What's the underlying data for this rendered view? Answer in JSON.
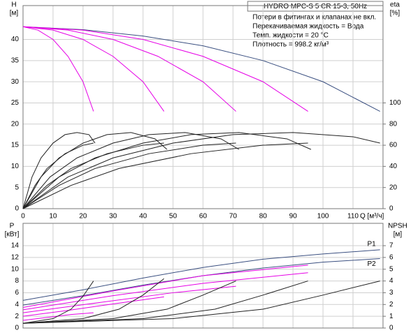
{
  "chart_data": [
    {
      "type": "line",
      "title": "HYDRO MPC-S 5 CR 15-3, 50Hz",
      "annotations": [
        "Потери в фитингах и клапанах не вкл.",
        "Перекачиваемая жидкость = Вода",
        "Темп. жидкости = 20 °C",
        "Плотность = 998.2 кг/м³"
      ],
      "xlabel": "Q [м³/ч]",
      "ylabel": "H",
      "yunit": "[м]",
      "y2label": "eta",
      "y2unit": "[%]",
      "xlim": [
        0,
        120
      ],
      "xticks": [
        0,
        10,
        20,
        30,
        40,
        50,
        60,
        70,
        80,
        90,
        100,
        110
      ],
      "ylim": [
        0,
        48
      ],
      "yticks": [
        0,
        5,
        10,
        15,
        20,
        25,
        30,
        35,
        40
      ],
      "y2lim": [
        0,
        192
      ],
      "y2ticks": [
        0,
        20,
        40,
        60,
        80,
        100
      ],
      "grid": true,
      "series": [
        {
          "color": "#3a4f80",
          "x": [
            0,
            20,
            40,
            60,
            80,
            100,
            119
          ],
          "values": [
            43,
            42.3,
            40.8,
            38.5,
            35,
            30,
            23
          ]
        },
        {
          "color": "#e600e6",
          "x": [
            0,
            5,
            10,
            15,
            20,
            23.5
          ],
          "values": [
            43,
            42.2,
            40,
            36,
            30,
            23
          ]
        },
        {
          "color": "#e600e6",
          "x": [
            0,
            10,
            20,
            30,
            40,
            47
          ],
          "values": [
            43,
            42.2,
            40,
            36,
            30,
            23
          ]
        },
        {
          "color": "#e600e6",
          "x": [
            0,
            15,
            30,
            45,
            60,
            71
          ],
          "values": [
            43,
            42.2,
            40,
            36,
            30,
            23
          ]
        },
        {
          "color": "#e600e6",
          "x": [
            0,
            20,
            40,
            60,
            80,
            95
          ],
          "values": [
            43,
            42.2,
            40,
            36,
            30,
            23
          ]
        },
        {
          "color": "#222222",
          "axis": "y2",
          "x": [
            0,
            3,
            6,
            10,
            14,
            18,
            22,
            24
          ],
          "values": [
            0,
            30,
            48,
            62,
            70,
            72,
            70,
            62
          ]
        },
        {
          "color": "#222222",
          "axis": "y2",
          "x": [
            0,
            6,
            12,
            20,
            28,
            36,
            44,
            48
          ],
          "values": [
            0,
            30,
            48,
            62,
            70,
            72,
            66,
            56
          ]
        },
        {
          "color": "#222222",
          "axis": "y2",
          "x": [
            0,
            9,
            18,
            30,
            42,
            54,
            66,
            72
          ],
          "values": [
            0,
            30,
            48,
            62,
            70,
            72,
            66,
            56
          ]
        },
        {
          "color": "#222222",
          "axis": "y2",
          "x": [
            0,
            12,
            24,
            40,
            56,
            72,
            88,
            96
          ],
          "values": [
            0,
            30,
            48,
            62,
            70,
            72,
            66,
            56
          ]
        },
        {
          "color": "#222222",
          "axis": "y2",
          "x": [
            0,
            15,
            30,
            50,
            70,
            90,
            110,
            119
          ],
          "values": [
            0,
            30,
            48,
            62,
            70,
            72,
            68,
            62
          ]
        },
        {
          "color": "#222222",
          "axis": "y2",
          "x": [
            0,
            4,
            8,
            14,
            20,
            23.5
          ],
          "values": [
            0,
            22,
            38,
            52,
            60,
            62
          ]
        },
        {
          "color": "#222222",
          "axis": "y2",
          "x": [
            0,
            8,
            16,
            28,
            40,
            47
          ],
          "values": [
            0,
            22,
            38,
            52,
            60,
            62
          ]
        },
        {
          "color": "#222222",
          "axis": "y2",
          "x": [
            0,
            12,
            24,
            42,
            60,
            71
          ],
          "values": [
            0,
            22,
            38,
            52,
            60,
            62
          ]
        },
        {
          "color": "#222222",
          "axis": "y2",
          "x": [
            0,
            16,
            32,
            56,
            80,
            95
          ],
          "values": [
            0,
            22,
            38,
            52,
            60,
            62
          ]
        }
      ]
    },
    {
      "type": "line",
      "ylabel": "P",
      "yunit": "[кВт]",
      "y2label": "NPSH",
      "y2unit": "[м]",
      "xlim": [
        0,
        120
      ],
      "xticks": [
        0,
        10,
        20,
        30,
        40,
        50,
        60,
        70,
        80,
        90,
        100,
        110
      ],
      "ylim": [
        0,
        17.8
      ],
      "yticks": [
        0,
        2,
        4,
        6,
        8,
        10,
        12,
        14
      ],
      "y2lim": [
        0,
        8.9
      ],
      "y2ticks": [
        0,
        1,
        2,
        3,
        4,
        5,
        6,
        7
      ],
      "grid": true,
      "series": [
        {
          "name": "P1",
          "color": "#3a4f80",
          "x": [
            0,
            20,
            40,
            60,
            80,
            100,
            119
          ],
          "values": [
            4.7,
            6.5,
            8.5,
            10.3,
            11.7,
            12.6,
            13.3
          ]
        },
        {
          "name": "P2",
          "color": "#3a4f80",
          "x": [
            0,
            20,
            40,
            60,
            80,
            100,
            119
          ],
          "values": [
            3.9,
            5.5,
            7.3,
            8.9,
            10.2,
            11.2,
            11.8
          ]
        },
        {
          "color": "#e600e6",
          "x": [
            0,
            8,
            16,
            23.5
          ],
          "values": [
            1.3,
            1.8,
            2.3,
            2.6
          ]
        },
        {
          "color": "#e600e6",
          "x": [
            0,
            15,
            30,
            47
          ],
          "values": [
            2.0,
            3.0,
            4.1,
            5.3
          ]
        },
        {
          "color": "#e600e6",
          "x": [
            0,
            25,
            50,
            71
          ],
          "values": [
            2.6,
            4.3,
            6.0,
            7.1
          ]
        },
        {
          "color": "#e600e6",
          "x": [
            0,
            30,
            60,
            95
          ],
          "values": [
            3.1,
            5.5,
            7.6,
            9.4
          ]
        },
        {
          "color": "#e600e6",
          "x": [
            0,
            30,
            60,
            95
          ],
          "values": [
            3.5,
            6.3,
            8.9,
            10.7
          ]
        },
        {
          "color": "#222222",
          "axis": "y2",
          "x": [
            0,
            10,
            16,
            20,
            23.5
          ],
          "values": [
            0.4,
            0.8,
            1.6,
            2.7,
            4.0
          ]
        },
        {
          "color": "#222222",
          "axis": "y2",
          "x": [
            0,
            20,
            32,
            40,
            47
          ],
          "values": [
            0.4,
            0.8,
            1.6,
            2.8,
            4.2
          ]
        },
        {
          "color": "#222222",
          "axis": "y2",
          "x": [
            0,
            30,
            48,
            60,
            71
          ],
          "values": [
            0.4,
            0.8,
            1.6,
            2.8,
            4.0
          ]
        },
        {
          "color": "#222222",
          "axis": "y2",
          "x": [
            0,
            40,
            64,
            80,
            95
          ],
          "values": [
            0.4,
            0.8,
            1.6,
            2.8,
            4.0
          ]
        },
        {
          "color": "#222222",
          "axis": "y2",
          "x": [
            0,
            50,
            80,
            100,
            119
          ],
          "values": [
            0.4,
            0.8,
            1.6,
            2.8,
            4.0
          ]
        }
      ]
    }
  ]
}
